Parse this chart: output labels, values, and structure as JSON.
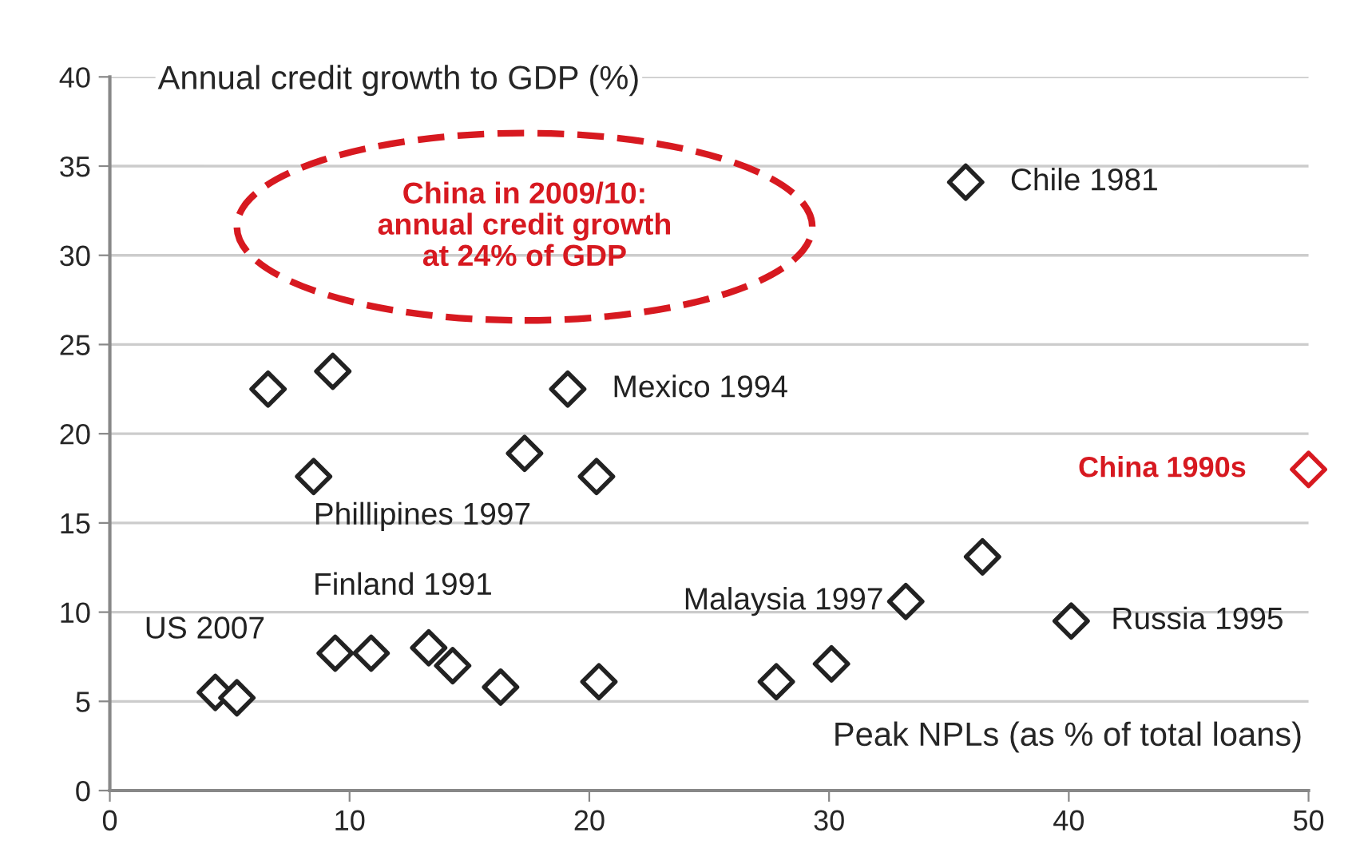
{
  "chart_data": {
    "type": "scatter",
    "xlabel": "Peak NPLs (as % of total loans)",
    "ylabel": "Annual credit growth to GDP (%)",
    "xlim": [
      0,
      50
    ],
    "xticks": [
      0,
      10,
      20,
      30,
      40,
      50
    ],
    "ylim": [
      0,
      40
    ],
    "yticks": [
      0,
      5,
      10,
      15,
      20,
      25,
      30,
      35,
      40
    ],
    "grid": "y",
    "marker": "diamond",
    "legend": false,
    "series": [
      {
        "color": "#222222",
        "x": [
          6.6,
          9.3,
          8.5,
          17.3,
          19.1,
          20.3,
          35.7,
          36.4,
          33.2,
          40.1,
          30.1,
          27.8,
          20.4,
          16.3,
          14.3,
          13.3,
          10.9,
          9.4,
          4.4,
          5.3
        ],
        "values": [
          22.5,
          23.5,
          17.6,
          18.9,
          22.5,
          17.6,
          34.1,
          13.1,
          10.6,
          9.5,
          7.1,
          6.1,
          6.1,
          5.8,
          7.0,
          8.0,
          7.7,
          7.7,
          5.5,
          5.2
        ]
      },
      {
        "name": "China 1990s",
        "color": "#d71920",
        "x": [
          50
        ],
        "values": [
          18.0
        ]
      }
    ],
    "annotations": [
      {
        "text": "Chile 1981",
        "x": 35.7,
        "y": 34.1
      },
      {
        "text": "Mexico 1994",
        "x": 19.1,
        "y": 22.5
      },
      {
        "text": "Phillipines 1997",
        "x": 8.5,
        "y": 17.6
      },
      {
        "text": "Finland 1991",
        "x": 9.4,
        "y": 7.7
      },
      {
        "text": "US 2007",
        "x": 4.4,
        "y": 5.5
      },
      {
        "text": "Malaysia 1997",
        "x": 33.2,
        "y": 10.6
      },
      {
        "text": "Russia 1995",
        "x": 40.1,
        "y": 9.5
      },
      "China in 2009/10:\nannual credit growth\nat 24% of GDP"
    ]
  }
}
